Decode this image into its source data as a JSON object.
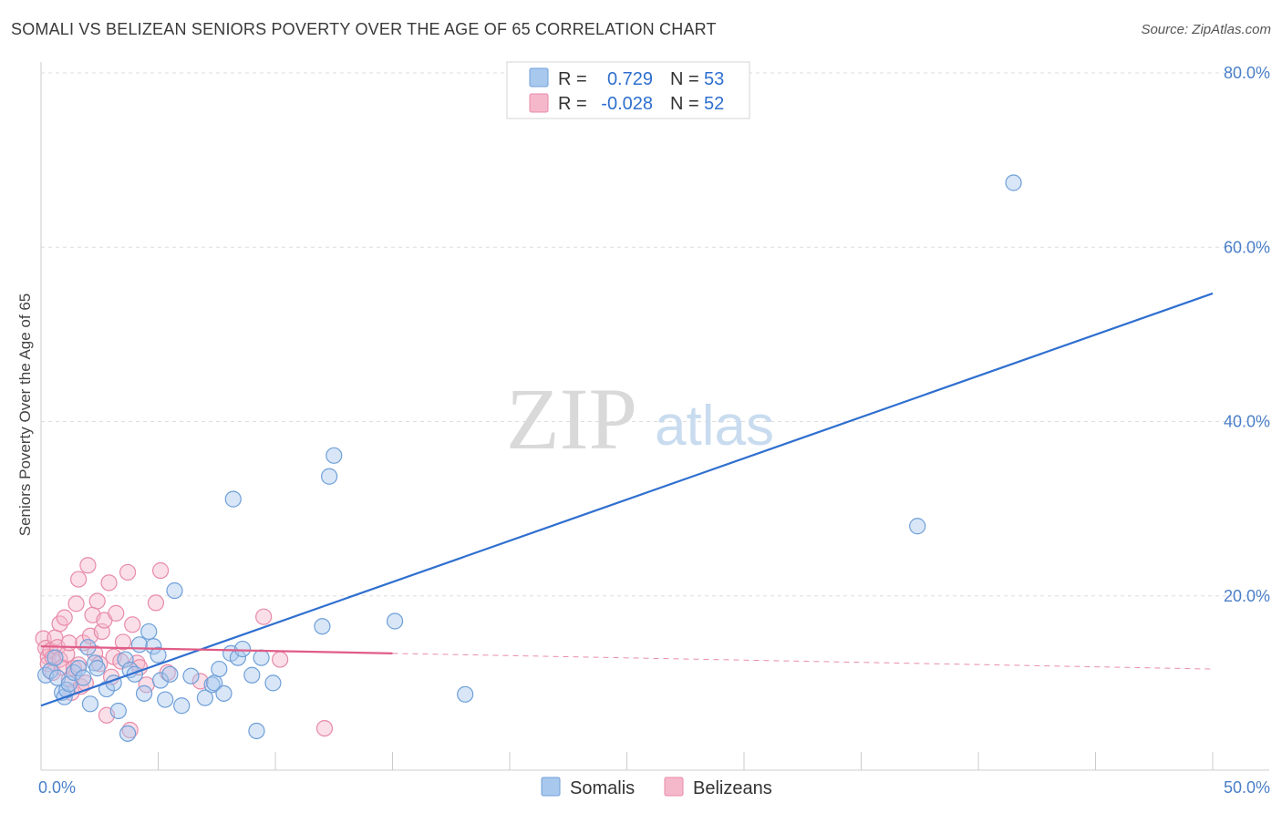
{
  "header": {
    "title": "SOMALI VS BELIZEAN SENIORS POVERTY OVER THE AGE OF 65 CORRELATION CHART",
    "source": "Source: ZipAtlas.com"
  },
  "watermark": {
    "zip": "ZIP",
    "atlas": "atlas"
  },
  "colors": {
    "somali_fill": "#a9c8ee",
    "somali_stroke": "#6f9fd8",
    "somali_line": "#2f6fcf",
    "belizean_fill": "#f5b8cb",
    "belizean_stroke": "#e88aa8",
    "belizean_line": "#e05c87",
    "tick_label": "#4a7fc8",
    "grid": "#dddddd"
  },
  "legend_box": {
    "rows": [
      {
        "r_label": "R =",
        "r_value": "0.729",
        "n_label": "N =",
        "n_value": "53"
      },
      {
        "r_label": "R =",
        "r_value": "-0.028",
        "n_label": "N =",
        "n_value": "52"
      }
    ]
  },
  "chart_data": {
    "type": "scatter",
    "title": "SOMALI VS BELIZEAN SENIORS POVERTY OVER THE AGE OF 65 CORRELATION CHART",
    "xlabel": "",
    "ylabel": "Seniors Poverty Over the Age of 65",
    "xlim": [
      0,
      50
    ],
    "ylim": [
      0,
      80
    ],
    "x_tick_labels": [
      {
        "value": 0,
        "label": "0.0%"
      },
      {
        "value": 50,
        "label": "50.0%"
      }
    ],
    "y_tick_labels": [
      {
        "value": 20,
        "label": "20.0%"
      },
      {
        "value": 40,
        "label": "40.0%"
      },
      {
        "value": 60,
        "label": "60.0%"
      },
      {
        "value": 80,
        "label": "80.0%"
      }
    ],
    "grid": true,
    "legend": "bottom-center",
    "series": [
      {
        "name": "Somalis",
        "r": 0.729,
        "n": 53,
        "trend": {
          "x0": 0,
          "y0": 7.4,
          "x1": 50,
          "y1": 54.7
        },
        "points": [
          [
            0.2,
            10.9
          ],
          [
            0.4,
            11.4
          ],
          [
            0.7,
            10.6
          ],
          [
            0.9,
            8.9
          ],
          [
            1.0,
            8.4
          ],
          [
            1.1,
            9.2
          ],
          [
            1.2,
            9.9
          ],
          [
            1.4,
            11.2
          ],
          [
            1.6,
            11.7
          ],
          [
            1.8,
            10.6
          ],
          [
            2.0,
            14.1
          ],
          [
            2.1,
            7.6
          ],
          [
            2.3,
            12.3
          ],
          [
            2.4,
            11.7
          ],
          [
            2.8,
            9.3
          ],
          [
            3.1,
            10.0
          ],
          [
            3.3,
            6.8
          ],
          [
            3.6,
            12.7
          ],
          [
            3.7,
            4.2
          ],
          [
            3.8,
            11.5
          ],
          [
            4.0,
            11.0
          ],
          [
            4.2,
            14.4
          ],
          [
            4.4,
            8.8
          ],
          [
            4.6,
            15.9
          ],
          [
            4.8,
            14.2
          ],
          [
            5.0,
            13.2
          ],
          [
            5.1,
            10.3
          ],
          [
            5.3,
            8.1
          ],
          [
            5.5,
            11.0
          ],
          [
            5.7,
            20.6
          ],
          [
            6.0,
            7.4
          ],
          [
            6.4,
            10.8
          ],
          [
            7.0,
            8.3
          ],
          [
            7.3,
            9.8
          ],
          [
            7.4,
            10.0
          ],
          [
            7.6,
            11.6
          ],
          [
            7.8,
            8.8
          ],
          [
            8.1,
            13.4
          ],
          [
            8.2,
            31.1
          ],
          [
            8.4,
            12.9
          ],
          [
            8.6,
            13.9
          ],
          [
            9.0,
            10.9
          ],
          [
            9.2,
            4.5
          ],
          [
            9.4,
            12.9
          ],
          [
            9.9,
            10.0
          ],
          [
            12.0,
            16.5
          ],
          [
            12.3,
            33.7
          ],
          [
            12.5,
            36.1
          ],
          [
            15.1,
            17.1
          ],
          [
            18.1,
            8.7
          ],
          [
            37.4,
            28.0
          ],
          [
            41.5,
            67.4
          ],
          [
            0.6,
            12.9
          ]
        ]
      },
      {
        "name": "Belizeans",
        "r": -0.028,
        "n": 52,
        "trend": {
          "x0": 0,
          "y0": 14.2,
          "x1": 15,
          "y1": 13.4,
          "dashed_to": {
            "x": 50,
            "y": 11.6
          }
        },
        "points": [
          [
            0.1,
            15.1
          ],
          [
            0.2,
            14.0
          ],
          [
            0.3,
            13.0
          ],
          [
            0.3,
            12.2
          ],
          [
            0.4,
            13.7
          ],
          [
            0.5,
            12.9
          ],
          [
            0.5,
            11.2
          ],
          [
            0.6,
            15.2
          ],
          [
            0.7,
            14.1
          ],
          [
            0.8,
            12.7
          ],
          [
            0.8,
            16.8
          ],
          [
            0.9,
            11.8
          ],
          [
            1.0,
            17.5
          ],
          [
            1.1,
            13.3
          ],
          [
            1.2,
            10.4
          ],
          [
            1.2,
            14.6
          ],
          [
            1.3,
            8.9
          ],
          [
            1.4,
            11.7
          ],
          [
            1.5,
            19.1
          ],
          [
            1.6,
            12.1
          ],
          [
            1.6,
            21.9
          ],
          [
            1.7,
            9.6
          ],
          [
            1.8,
            14.6
          ],
          [
            1.9,
            10.0
          ],
          [
            2.0,
            23.5
          ],
          [
            2.1,
            15.4
          ],
          [
            2.2,
            17.8
          ],
          [
            2.3,
            13.4
          ],
          [
            2.4,
            19.4
          ],
          [
            2.5,
            12.2
          ],
          [
            2.6,
            15.9
          ],
          [
            2.7,
            17.2
          ],
          [
            2.8,
            6.3
          ],
          [
            2.9,
            21.5
          ],
          [
            3.0,
            10.7
          ],
          [
            3.1,
            13.0
          ],
          [
            3.2,
            18.0
          ],
          [
            3.4,
            12.5
          ],
          [
            3.5,
            14.7
          ],
          [
            3.7,
            22.7
          ],
          [
            3.8,
            4.6
          ],
          [
            3.9,
            16.7
          ],
          [
            4.1,
            12.3
          ],
          [
            4.2,
            11.8
          ],
          [
            4.5,
            9.8
          ],
          [
            4.9,
            19.2
          ],
          [
            5.1,
            22.9
          ],
          [
            5.4,
            11.2
          ],
          [
            6.8,
            10.2
          ],
          [
            9.5,
            17.6
          ],
          [
            10.2,
            12.7
          ],
          [
            12.1,
            4.8
          ]
        ]
      }
    ]
  }
}
